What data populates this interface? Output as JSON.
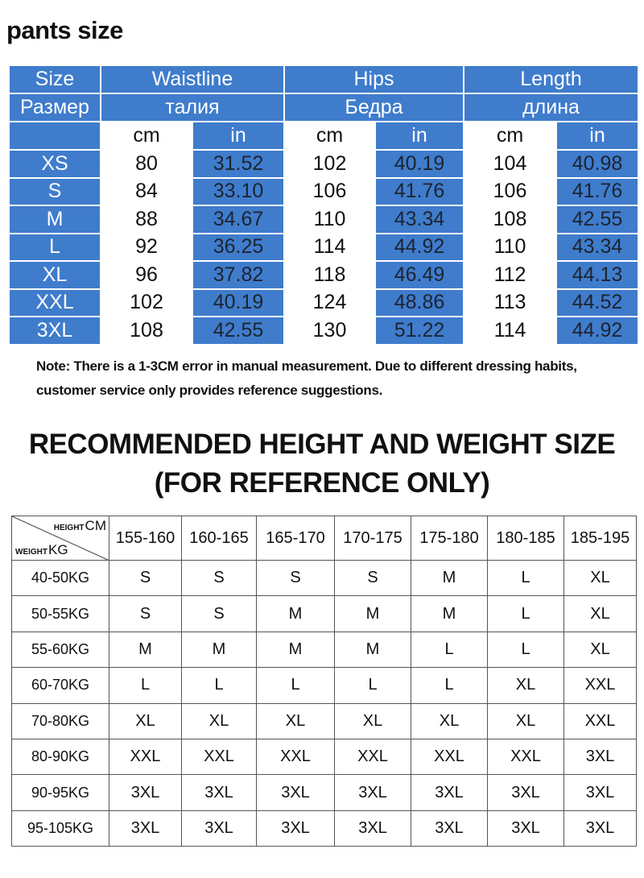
{
  "title": "pants size",
  "size_table": {
    "columns": [
      {
        "en": "Size",
        "ru": "Размер"
      },
      {
        "en": "Waistline",
        "ru": "талия"
      },
      {
        "en": "Hips",
        "ru": "Бедра"
      },
      {
        "en": "Length",
        "ru": "длина"
      }
    ],
    "units": [
      "cm",
      "in",
      "cm",
      "in",
      "cm",
      "in"
    ],
    "rows": [
      [
        "XS",
        "80",
        "31.52",
        "102",
        "40.19",
        "104",
        "40.98"
      ],
      [
        "S",
        "84",
        "33.10",
        "106",
        "41.76",
        "106",
        "41.76"
      ],
      [
        "M",
        "88",
        "34.67",
        "110",
        "43.34",
        "108",
        "42.55"
      ],
      [
        "L",
        "92",
        "36.25",
        "114",
        "44.92",
        "110",
        "43.34"
      ],
      [
        "XL",
        "96",
        "37.82",
        "118",
        "46.49",
        "112",
        "44.13"
      ],
      [
        "XXL",
        "102",
        "40.19",
        "124",
        "48.86",
        "113",
        "44.52"
      ],
      [
        "3XL",
        "108",
        "42.55",
        "130",
        "51.22",
        "114",
        "44.92"
      ]
    ]
  },
  "note": "Note: There is a 1-3CM error in manual measurement. Due to different dressing habits, customer service only provides reference suggestions.",
  "heading": {
    "line1": "RECOMMENDED HEIGHT AND WEIGHT SIZE",
    "line2": "(FOR REFERENCE ONLY)"
  },
  "recommend_table": {
    "corner": {
      "height_label": "HEIGHT",
      "height_unit": "CM",
      "weight_label": "WEIGHT",
      "weight_unit": "KG"
    },
    "heights": [
      "155-160",
      "160-165",
      "165-170",
      "170-175",
      "175-180",
      "180-185",
      "185-195"
    ],
    "rows": [
      {
        "weight": "40-50KG",
        "sizes": [
          "S",
          "S",
          "S",
          "S",
          "M",
          "L",
          "XL"
        ]
      },
      {
        "weight": "50-55KG",
        "sizes": [
          "S",
          "S",
          "M",
          "M",
          "M",
          "L",
          "XL"
        ]
      },
      {
        "weight": "55-60KG",
        "sizes": [
          "M",
          "M",
          "M",
          "M",
          "L",
          "L",
          "XL"
        ]
      },
      {
        "weight": "60-70KG",
        "sizes": [
          "L",
          "L",
          "L",
          "L",
          "L",
          "XL",
          "XXL"
        ]
      },
      {
        "weight": "70-80KG",
        "sizes": [
          "XL",
          "XL",
          "XL",
          "XL",
          "XL",
          "XL",
          "XXL"
        ]
      },
      {
        "weight": "80-90KG",
        "sizes": [
          "XXL",
          "XXL",
          "XXL",
          "XXL",
          "XXL",
          "XXL",
          "3XL"
        ]
      },
      {
        "weight": "90-95KG",
        "sizes": [
          "3XL",
          "3XL",
          "3XL",
          "3XL",
          "3XL",
          "3XL",
          "3XL"
        ]
      },
      {
        "weight": "95-105KG",
        "sizes": [
          "3XL",
          "3XL",
          "3XL",
          "3XL",
          "3XL",
          "3XL",
          "3XL"
        ]
      }
    ]
  }
}
